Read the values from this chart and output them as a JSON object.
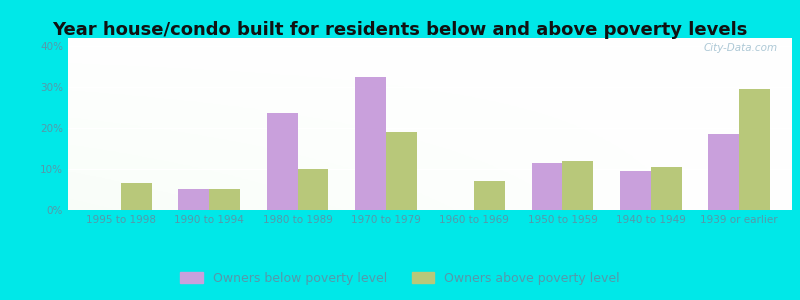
{
  "title": "Year house/condo built for residents below and above poverty levels",
  "categories": [
    "1995 to 1998",
    "1990 to 1994",
    "1980 to 1989",
    "1970 to 1979",
    "1960 to 1969",
    "1950 to 1959",
    "1940 to 1949",
    "1939 or earlier"
  ],
  "below_poverty": [
    0,
    5,
    23.5,
    32.5,
    0,
    11.5,
    9.5,
    18.5
  ],
  "above_poverty": [
    6.5,
    5,
    10,
    19,
    7,
    12,
    10.5,
    29.5
  ],
  "below_color": "#c9a0dc",
  "above_color": "#b8c87a",
  "outer_background": "#00e8e8",
  "ylabel_ticks": [
    0,
    10,
    20,
    30,
    40
  ],
  "ylim": [
    0,
    42
  ],
  "bar_width": 0.35,
  "legend_below_label": "Owners below poverty level",
  "legend_above_label": "Owners above poverty level",
  "watermark": "City-Data.com",
  "title_fontsize": 13,
  "tick_fontsize": 7.5,
  "legend_fontsize": 9,
  "tick_color": "#5599aa",
  "title_color": "#111111"
}
